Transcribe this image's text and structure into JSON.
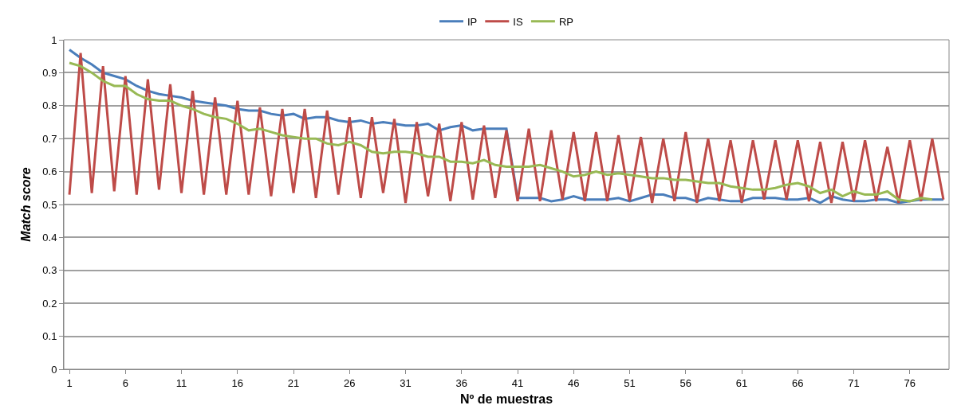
{
  "chart_data": {
    "type": "line",
    "xlabel": "Nº de muestras",
    "ylabel": "Match score",
    "x": [
      1,
      2,
      3,
      4,
      5,
      6,
      7,
      8,
      9,
      10,
      11,
      12,
      13,
      14,
      15,
      16,
      17,
      18,
      19,
      20,
      21,
      22,
      23,
      24,
      25,
      26,
      27,
      28,
      29,
      30,
      31,
      32,
      33,
      34,
      35,
      36,
      37,
      38,
      39,
      40,
      41,
      42,
      43,
      44,
      45,
      46,
      47,
      48,
      49,
      50,
      51,
      52,
      53,
      54,
      55,
      56,
      57,
      58,
      59,
      60,
      61,
      62,
      63,
      64,
      65,
      66,
      67,
      68,
      69,
      70,
      71,
      72,
      73,
      74,
      75,
      76,
      77,
      78,
      79
    ],
    "xlim": [
      0.5,
      79.5
    ],
    "xticks": [
      1,
      6,
      11,
      16,
      21,
      26,
      31,
      36,
      41,
      46,
      51,
      56,
      61,
      66,
      71,
      76
    ],
    "ylim": [
      0,
      1
    ],
    "yticks": [
      0,
      0.1,
      0.2,
      0.3,
      0.4,
      0.5,
      0.6,
      0.7,
      0.8,
      0.9,
      1
    ],
    "grid": "y",
    "legend": "top",
    "line_style": "solid",
    "marker": "none",
    "series": [
      {
        "name": "IP",
        "color": "#4a7ebb",
        "values": [
          0.97,
          0.945,
          0.925,
          0.9,
          0.89,
          0.88,
          0.86,
          0.845,
          0.835,
          0.83,
          0.825,
          0.815,
          0.81,
          0.805,
          0.8,
          0.79,
          0.785,
          0.785,
          0.775,
          0.77,
          0.775,
          0.76,
          0.765,
          0.765,
          0.755,
          0.75,
          0.755,
          0.745,
          0.75,
          0.745,
          0.74,
          0.74,
          0.745,
          0.725,
          0.735,
          0.74,
          0.725,
          0.73,
          0.73,
          0.73,
          0.52,
          0.52,
          0.52,
          0.51,
          0.515,
          0.525,
          0.515,
          0.515,
          0.515,
          0.52,
          0.51,
          0.52,
          0.53,
          0.53,
          0.52,
          0.52,
          0.51,
          0.52,
          0.515,
          0.51,
          0.51,
          0.52,
          0.52,
          0.52,
          0.515,
          0.515,
          0.52,
          0.505,
          0.525,
          0.515,
          0.51,
          0.51,
          0.515,
          0.515,
          0.505,
          0.51,
          0.515,
          0.515,
          0.515
        ]
      },
      {
        "name": "IS",
        "color": "#be4b48",
        "values": [
          0.53,
          0.96,
          0.535,
          0.92,
          0.54,
          0.89,
          0.53,
          0.88,
          0.545,
          0.865,
          0.535,
          0.845,
          0.53,
          0.825,
          0.53,
          0.815,
          0.53,
          0.795,
          0.525,
          0.79,
          0.535,
          0.79,
          0.52,
          0.785,
          0.53,
          0.765,
          0.52,
          0.765,
          0.535,
          0.76,
          0.505,
          0.75,
          0.525,
          0.745,
          0.51,
          0.75,
          0.515,
          0.74,
          0.52,
          0.725,
          0.51,
          0.73,
          0.51,
          0.725,
          0.515,
          0.72,
          0.51,
          0.72,
          0.51,
          0.71,
          0.51,
          0.705,
          0.505,
          0.7,
          0.51,
          0.72,
          0.505,
          0.7,
          0.51,
          0.695,
          0.505,
          0.695,
          0.515,
          0.695,
          0.515,
          0.695,
          0.51,
          0.69,
          0.505,
          0.69,
          0.51,
          0.695,
          0.51,
          0.675,
          0.505,
          0.695,
          0.51,
          0.7,
          0.515
        ]
      },
      {
        "name": "RP",
        "color": "#98b954",
        "values": [
          0.93,
          0.92,
          0.9,
          0.875,
          0.86,
          0.86,
          0.835,
          0.82,
          0.815,
          0.815,
          0.8,
          0.79,
          0.775,
          0.765,
          0.76,
          0.745,
          0.725,
          0.73,
          0.72,
          0.71,
          0.705,
          0.7,
          0.7,
          0.685,
          0.68,
          0.69,
          0.68,
          0.66,
          0.655,
          0.66,
          0.66,
          0.655,
          0.645,
          0.645,
          0.63,
          0.63,
          0.625,
          0.635,
          0.62,
          0.615,
          0.615,
          0.615,
          0.62,
          0.61,
          0.6,
          0.585,
          0.59,
          0.6,
          0.59,
          0.595,
          0.59,
          0.585,
          0.58,
          0.58,
          0.575,
          0.575,
          0.57,
          0.565,
          0.565,
          0.555,
          0.55,
          0.545,
          0.545,
          0.55,
          0.56,
          0.565,
          0.555,
          0.535,
          0.545,
          0.525,
          0.54,
          0.53,
          0.53,
          0.54,
          0.515,
          0.51,
          0.52,
          0.515,
          null
        ]
      }
    ]
  }
}
